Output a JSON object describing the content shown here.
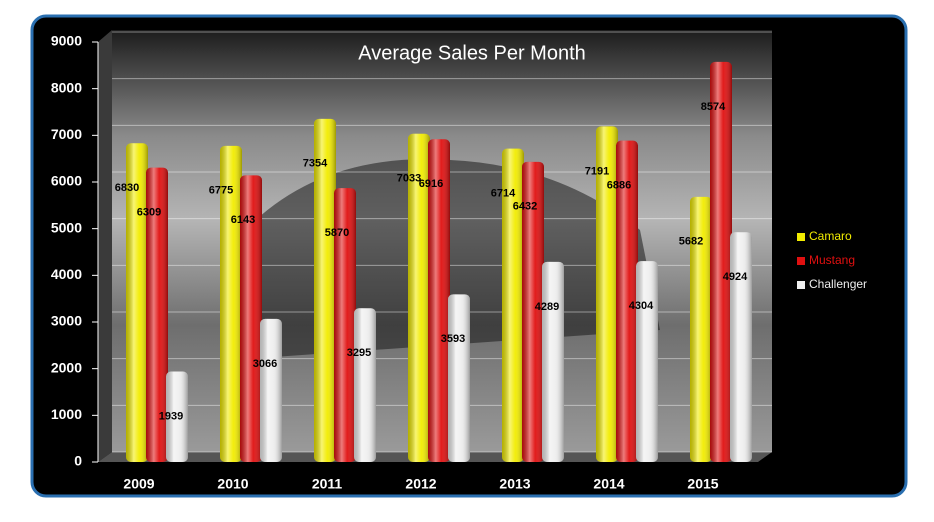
{
  "chart_data": {
    "type": "bar",
    "title": "Average Sales Per Month",
    "categories": [
      "2009",
      "2010",
      "2011",
      "2012",
      "2013",
      "2014",
      "2015"
    ],
    "series": [
      {
        "name": "Camaro",
        "color": "#f2ec00",
        "values": [
          6830,
          6775,
          7354,
          7033,
          6714,
          7191,
          5682
        ]
      },
      {
        "name": "Mustang",
        "color": "#e01010",
        "values": [
          6309,
          6143,
          5870,
          6916,
          6432,
          6886,
          8574
        ]
      },
      {
        "name": "Challenger",
        "color": "#eeeeee",
        "values": [
          1939,
          3066,
          3295,
          3593,
          4289,
          4304,
          4924
        ]
      }
    ],
    "ylim": [
      0,
      9000
    ],
    "yticks": [
      0,
      1000,
      2000,
      3000,
      4000,
      5000,
      6000,
      7000,
      8000,
      9000
    ],
    "grid": true,
    "legend": "right"
  }
}
